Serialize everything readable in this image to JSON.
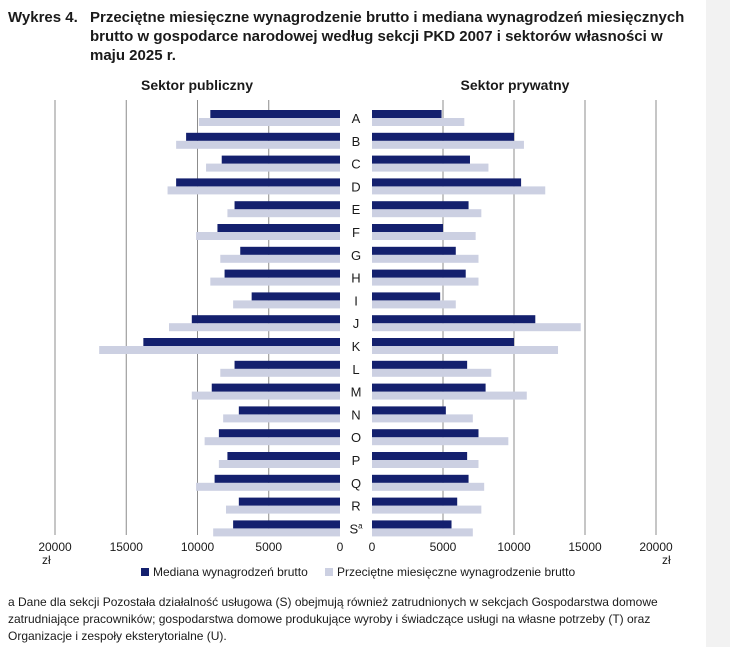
{
  "figure": {
    "label": "Wykres 4.",
    "title": "Przeciętne miesięczne wynagrodzenie brutto i mediana wynagrodzeń miesięcznych brutto w gospodarce narodowej według sekcji PKD 2007 i sektorów własności w maju 2025 r.",
    "footnote": "a Dane dla sekcji Pozostała działalność usługowa (S) obejmują również zatrudnionych w sekcjach Gospodarstwa domowe zatrudniające pracowników; gospodarstwa domowe produkujące wyroby i świadczące usługi na własne potrzeby (T) oraz Organizacje i zespoły eksterytorialne (U)."
  },
  "chart_data": {
    "type": "bar",
    "orientation": "horizontal-butterfly",
    "panels": [
      {
        "name": "Sektor publiczny",
        "direction": "left"
      },
      {
        "name": "Sektor prywatny",
        "direction": "right"
      }
    ],
    "categories": [
      "A",
      "B",
      "C",
      "D",
      "E",
      "F",
      "G",
      "H",
      "I",
      "J",
      "K",
      "L",
      "M",
      "N",
      "O",
      "P",
      "Q",
      "R",
      "S"
    ],
    "category_superscripts": {
      "S": "a"
    },
    "series": [
      {
        "name": "Mediana wynagrodzeń brutto",
        "color": "#14206e",
        "public": [
          9100,
          10800,
          8300,
          11500,
          7400,
          8600,
          7000,
          8100,
          6200,
          10400,
          13800,
          7400,
          9000,
          7100,
          8500,
          7900,
          8800,
          7100,
          7500
        ],
        "private": [
          4900,
          10000,
          6900,
          10500,
          6800,
          5000,
          5900,
          6600,
          4800,
          11500,
          10000,
          6700,
          8000,
          5200,
          7500,
          6700,
          6800,
          6000,
          5600
        ]
      },
      {
        "name": "Przeciętne miesięczne wynagrodzenie brutto",
        "color": "#ccd0e2",
        "public": [
          9900,
          11500,
          9400,
          12100,
          7900,
          10100,
          8400,
          9100,
          7500,
          12000,
          16900,
          8400,
          10400,
          8200,
          9500,
          8500,
          10100,
          8000,
          8900
        ],
        "private": [
          6500,
          10700,
          8200,
          12200,
          7700,
          7300,
          7500,
          7500,
          5900,
          14700,
          13100,
          8400,
          10900,
          7100,
          9600,
          7500,
          7900,
          7700,
          7100
        ]
      }
    ],
    "xlim": [
      0,
      20000
    ],
    "ticks": [
      0,
      5000,
      10000,
      15000,
      20000
    ],
    "tick_labels_public": [
      "20000",
      "15000",
      "10000",
      "5000",
      "0"
    ],
    "tick_labels_private": [
      "0",
      "5000",
      "10000",
      "15000",
      "20000"
    ],
    "unit": "zł",
    "grid": true,
    "legend": "bottom"
  }
}
